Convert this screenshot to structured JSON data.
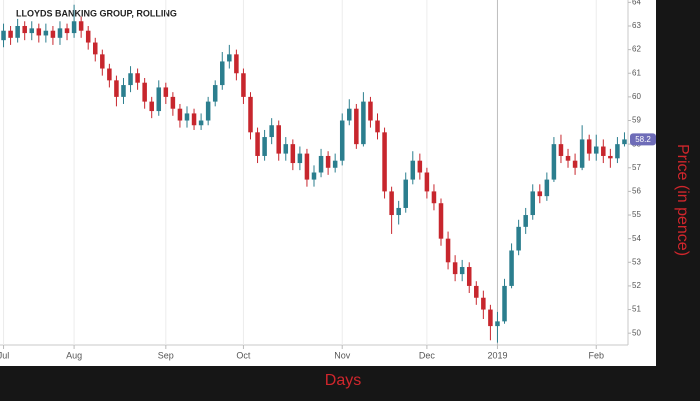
{
  "chart_data": {
    "type": "candlestick",
    "title": "LLOYDS BANKING GROUP, ROLLING",
    "x_label": "Days",
    "y_label": "Price (in pence)",
    "categories": [
      "Jul",
      null,
      null,
      null,
      null,
      null,
      null,
      null,
      null,
      null,
      "Aug",
      null,
      null,
      null,
      null,
      null,
      null,
      null,
      null,
      null,
      null,
      null,
      null,
      "Sep",
      null,
      null,
      null,
      null,
      null,
      null,
      null,
      null,
      null,
      null,
      "Oct",
      null,
      null,
      null,
      null,
      null,
      null,
      null,
      null,
      null,
      null,
      null,
      null,
      null,
      "Nov",
      null,
      null,
      null,
      null,
      null,
      null,
      null,
      null,
      null,
      null,
      null,
      "Dec",
      null,
      null,
      null,
      null,
      null,
      null,
      null,
      null,
      null,
      "2019",
      null,
      null,
      null,
      null,
      null,
      null,
      null,
      null,
      null,
      null,
      null,
      null,
      null,
      "Feb",
      null,
      null,
      null,
      null
    ],
    "open": [
      62.4,
      62.8,
      62.5,
      63.0,
      62.7,
      62.9,
      62.6,
      62.8,
      62.5,
      62.9,
      62.7,
      63.2,
      62.8,
      62.3,
      61.8,
      61.2,
      60.7,
      60.0,
      60.5,
      61.0,
      60.6,
      59.8,
      59.4,
      60.4,
      60.0,
      59.5,
      59.0,
      59.3,
      58.8,
      59.0,
      59.8,
      60.5,
      61.5,
      61.8,
      61.0,
      60.0,
      58.5,
      57.5,
      58.3,
      58.8,
      57.6,
      58.0,
      57.2,
      57.6,
      56.5,
      56.8,
      57.5,
      57.0,
      57.3,
      59.0,
      59.5,
      58.0,
      59.8,
      59.0,
      58.5,
      56.0,
      55.0,
      55.3,
      56.5,
      57.3,
      56.8,
      56.0,
      55.5,
      54.0,
      53.0,
      52.5,
      52.8,
      52.0,
      51.5,
      51.0,
      50.3,
      50.5,
      52.0,
      53.5,
      54.5,
      55.0,
      56.0,
      55.8,
      56.5,
      58.0,
      57.5,
      57.3,
      57.0,
      58.2,
      57.6,
      57.9,
      57.5,
      57.4,
      58.0
    ],
    "high": [
      63.1,
      63.0,
      63.3,
      63.2,
      63.2,
      63.1,
      63.1,
      63.0,
      63.2,
      63.1,
      63.9,
      63.4,
      63.0,
      62.5,
      62.0,
      61.4,
      60.9,
      60.8,
      61.3,
      61.2,
      60.8,
      60.0,
      60.7,
      60.6,
      60.2,
      59.7,
      59.6,
      59.5,
      59.3,
      60.0,
      60.7,
      61.9,
      62.2,
      62.0,
      61.2,
      60.2,
      58.7,
      58.6,
      59.1,
      59.0,
      58.3,
      58.2,
      57.9,
      57.8,
      57.1,
      57.8,
      57.7,
      57.6,
      59.3,
      59.9,
      59.7,
      60.2,
      60.0,
      59.3,
      58.7,
      56.2,
      55.6,
      56.8,
      57.7,
      57.6,
      57.0,
      56.3,
      55.7,
      54.3,
      53.3,
      53.1,
      53.0,
      52.2,
      51.8,
      51.2,
      50.9,
      52.3,
      53.8,
      54.8,
      55.3,
      56.3,
      56.3,
      56.8,
      58.3,
      58.4,
      57.8,
      57.6,
      58.8,
      58.4,
      58.4,
      58.2,
      57.8,
      58.3,
      58.5
    ],
    "low": [
      62.1,
      62.2,
      62.3,
      62.4,
      62.4,
      62.3,
      62.3,
      62.2,
      62.2,
      62.4,
      62.5,
      62.5,
      62.0,
      61.5,
      60.9,
      60.4,
      59.6,
      59.7,
      60.2,
      60.3,
      59.5,
      59.1,
      59.2,
      59.7,
      59.2,
      58.7,
      58.7,
      58.6,
      58.6,
      58.8,
      59.6,
      60.3,
      61.2,
      60.7,
      59.7,
      58.2,
      57.2,
      57.3,
      58.0,
      57.3,
      57.3,
      56.9,
      56.9,
      56.2,
      56.2,
      56.6,
      56.7,
      56.8,
      57.1,
      58.8,
      57.8,
      57.9,
      58.7,
      58.2,
      55.7,
      54.2,
      54.6,
      55.1,
      56.3,
      56.5,
      55.7,
      55.2,
      53.7,
      52.7,
      52.2,
      52.2,
      51.7,
      51.2,
      50.6,
      49.7,
      49.6,
      50.4,
      51.9,
      53.3,
      54.2,
      54.8,
      55.5,
      55.6,
      56.4,
      57.2,
      57.0,
      56.7,
      56.9,
      57.3,
      57.3,
      57.2,
      57.0,
      57.2,
      57.9
    ],
    "close": [
      62.8,
      62.5,
      63.0,
      62.7,
      62.9,
      62.6,
      62.8,
      62.5,
      62.9,
      62.7,
      63.2,
      62.8,
      62.3,
      61.8,
      61.2,
      60.7,
      60.0,
      60.5,
      61.0,
      60.6,
      59.8,
      59.4,
      60.4,
      60.0,
      59.5,
      59.0,
      59.3,
      58.8,
      59.0,
      59.8,
      60.5,
      61.5,
      61.8,
      61.0,
      60.0,
      58.5,
      57.5,
      58.3,
      58.8,
      57.6,
      58.0,
      57.2,
      57.6,
      56.5,
      56.8,
      57.5,
      57.0,
      57.3,
      59.0,
      59.5,
      58.0,
      59.8,
      59.0,
      58.5,
      56.0,
      55.0,
      55.3,
      56.5,
      57.3,
      56.8,
      56.0,
      55.5,
      54.0,
      53.0,
      52.5,
      52.8,
      52.0,
      51.5,
      51.0,
      50.3,
      50.5,
      52.0,
      53.5,
      54.5,
      55.0,
      56.0,
      55.8,
      56.5,
      58.0,
      57.5,
      57.3,
      57.0,
      58.2,
      57.6,
      57.9,
      57.5,
      57.4,
      58.0,
      58.2
    ],
    "up_color": "#2b7e8e",
    "down_color": "#c7262d",
    "ylim": [
      49.5,
      64.1
    ],
    "yticks": [
      50,
      51,
      52,
      53,
      54,
      55,
      56,
      57,
      58,
      59,
      60,
      61,
      62,
      63,
      64
    ],
    "grid": true
  }
}
